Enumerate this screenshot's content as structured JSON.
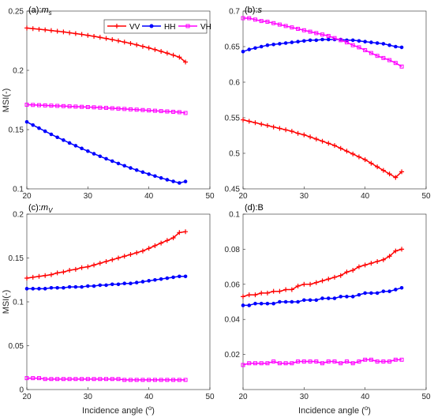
{
  "figure": {
    "ylabel": "MSI(-)",
    "xlabel_text": "Incidence angle (",
    "xlabel_sup": "o",
    "xlabel_close": ")"
  },
  "colors": {
    "VV": "#ff0000",
    "HH": "#0000ff",
    "VH": "#ff00ff"
  },
  "chart_data": [
    {
      "type": "line",
      "title_prefix": "(a):",
      "title_main": "m",
      "title_sub": "s",
      "xlim": [
        20,
        50
      ],
      "ylim": [
        0.1,
        0.25
      ],
      "xticks": [
        20,
        30,
        40,
        50
      ],
      "yticks": [
        0.1,
        0.15,
        0.2,
        0.25
      ],
      "ytick_labels": [
        "0.1",
        "0.15",
        "0.2",
        "0.25"
      ],
      "legend": {
        "location": "top-right",
        "entries": [
          "VV",
          "HH",
          "VH"
        ]
      },
      "x": [
        20,
        21,
        22,
        23,
        24,
        25,
        26,
        27,
        28,
        29,
        30,
        31,
        32,
        33,
        34,
        35,
        36,
        37,
        38,
        39,
        40,
        41,
        42,
        43,
        44,
        45,
        46
      ],
      "series": [
        {
          "name": "VV",
          "marker": "plus",
          "values": [
            0.2357,
            0.2352,
            0.2347,
            0.2342,
            0.2336,
            0.233,
            0.2324,
            0.2317,
            0.231,
            0.2303,
            0.2295,
            0.2287,
            0.2278,
            0.2269,
            0.2259,
            0.2249,
            0.2238,
            0.2227,
            0.2215,
            0.2202,
            0.2189,
            0.2175,
            0.216,
            0.2145,
            0.2128,
            0.2111,
            0.207
          ]
        },
        {
          "name": "HH",
          "marker": "circle",
          "values": [
            0.1565,
            0.1538,
            0.1512,
            0.1486,
            0.146,
            0.1435,
            0.1411,
            0.1387,
            0.1364,
            0.1341,
            0.1318,
            0.1296,
            0.1275,
            0.1254,
            0.1234,
            0.1214,
            0.1195,
            0.1176,
            0.1158,
            0.1141,
            0.1124,
            0.1108,
            0.1092,
            0.1077,
            0.1063,
            0.105,
            0.1062
          ]
        },
        {
          "name": "VH",
          "marker": "square",
          "values": [
            0.171,
            0.1708,
            0.1706,
            0.1704,
            0.1702,
            0.17,
            0.1698,
            0.1696,
            0.1694,
            0.1692,
            0.169,
            0.1688,
            0.1685,
            0.1683,
            0.168,
            0.1677,
            0.1674,
            0.1671,
            0.1668,
            0.1665,
            0.1662,
            0.1659,
            0.1656,
            0.1653,
            0.165,
            0.1647,
            0.164
          ]
        }
      ]
    },
    {
      "type": "line",
      "title_prefix": "(b):",
      "title_main": "s",
      "title_sub": "",
      "xlim": [
        20,
        50
      ],
      "ylim": [
        0.45,
        0.7
      ],
      "xticks": [
        20,
        30,
        40,
        50
      ],
      "yticks": [
        0.45,
        0.5,
        0.55,
        0.6,
        0.65,
        0.7
      ],
      "ytick_labels": [
        "0.45",
        "0.5",
        "0.55",
        "0.6",
        "0.65",
        "0.7"
      ],
      "x": [
        20,
        21,
        22,
        23,
        24,
        25,
        26,
        27,
        28,
        29,
        30,
        31,
        32,
        33,
        34,
        35,
        36,
        37,
        38,
        39,
        40,
        41,
        42,
        43,
        44,
        45,
        46
      ],
      "series": [
        {
          "name": "VV",
          "marker": "plus",
          "values": [
            0.547,
            0.545,
            0.543,
            0.541,
            0.539,
            0.537,
            0.535,
            0.533,
            0.531,
            0.528,
            0.526,
            0.523,
            0.52,
            0.517,
            0.514,
            0.511,
            0.507,
            0.503,
            0.499,
            0.495,
            0.491,
            0.486,
            0.481,
            0.476,
            0.471,
            0.466,
            0.474
          ]
        },
        {
          "name": "HH",
          "marker": "circle",
          "values": [
            0.643,
            0.646,
            0.648,
            0.65,
            0.652,
            0.653,
            0.654,
            0.655,
            0.656,
            0.657,
            0.658,
            0.659,
            0.659,
            0.66,
            0.66,
            0.66,
            0.66,
            0.659,
            0.659,
            0.658,
            0.657,
            0.656,
            0.655,
            0.654,
            0.652,
            0.65,
            0.649
          ]
        },
        {
          "name": "VH",
          "marker": "square",
          "values": [
            0.69,
            0.69,
            0.688,
            0.686,
            0.685,
            0.683,
            0.681,
            0.679,
            0.677,
            0.675,
            0.673,
            0.671,
            0.669,
            0.667,
            0.665,
            0.662,
            0.659,
            0.656,
            0.652,
            0.649,
            0.645,
            0.641,
            0.637,
            0.634,
            0.631,
            0.627,
            0.622
          ]
        }
      ]
    },
    {
      "type": "line",
      "title_prefix": "(c):",
      "title_main": "m",
      "title_sub": "V",
      "xlim": [
        20,
        50
      ],
      "ylim": [
        0,
        0.2
      ],
      "xticks": [
        20,
        30,
        40,
        50
      ],
      "yticks": [
        0,
        0.05,
        0.1,
        0.15,
        0.2
      ],
      "ytick_labels": [
        "0",
        "0.05",
        "0.1",
        "0.15",
        "0.2"
      ],
      "x": [
        20,
        21,
        22,
        23,
        24,
        25,
        26,
        27,
        28,
        29,
        30,
        31,
        32,
        33,
        34,
        35,
        36,
        37,
        38,
        39,
        40,
        41,
        42,
        43,
        44,
        45,
        46
      ],
      "series": [
        {
          "name": "VV",
          "marker": "plus",
          "values": [
            0.127,
            0.128,
            0.129,
            0.13,
            0.131,
            0.133,
            0.134,
            0.136,
            0.137,
            0.139,
            0.14,
            0.142,
            0.144,
            0.146,
            0.148,
            0.15,
            0.152,
            0.154,
            0.156,
            0.158,
            0.161,
            0.164,
            0.167,
            0.17,
            0.173,
            0.179,
            0.18
          ]
        },
        {
          "name": "HH",
          "marker": "circle",
          "values": [
            0.115,
            0.115,
            0.115,
            0.115,
            0.116,
            0.116,
            0.116,
            0.117,
            0.117,
            0.117,
            0.118,
            0.118,
            0.119,
            0.119,
            0.12,
            0.12,
            0.121,
            0.121,
            0.122,
            0.123,
            0.124,
            0.125,
            0.126,
            0.127,
            0.128,
            0.129,
            0.129
          ]
        },
        {
          "name": "VH",
          "marker": "square",
          "values": [
            0.013,
            0.013,
            0.013,
            0.012,
            0.012,
            0.012,
            0.012,
            0.012,
            0.012,
            0.012,
            0.012,
            0.012,
            0.012,
            0.012,
            0.012,
            0.012,
            0.011,
            0.011,
            0.011,
            0.011,
            0.011,
            0.011,
            0.011,
            0.011,
            0.011,
            0.011,
            0.011
          ]
        }
      ]
    },
    {
      "type": "line",
      "title_prefix": "(d):",
      "title_main": "B",
      "title_sub": "",
      "xlim": [
        20,
        50
      ],
      "ylim": [
        0,
        0.1
      ],
      "xticks": [
        20,
        30,
        40,
        50
      ],
      "yticks": [
        0.02,
        0.04,
        0.06,
        0.08,
        0.1
      ],
      "ytick_labels": [
        "0.02",
        "0.04",
        "0.06",
        "0.08",
        "0.1"
      ],
      "x": [
        20,
        21,
        22,
        23,
        24,
        25,
        26,
        27,
        28,
        29,
        30,
        31,
        32,
        33,
        34,
        35,
        36,
        37,
        38,
        39,
        40,
        41,
        42,
        43,
        44,
        45,
        46
      ],
      "series": [
        {
          "name": "VV",
          "marker": "plus",
          "values": [
            0.053,
            0.054,
            0.054,
            0.055,
            0.055,
            0.056,
            0.056,
            0.057,
            0.057,
            0.059,
            0.06,
            0.06,
            0.061,
            0.062,
            0.063,
            0.064,
            0.065,
            0.067,
            0.068,
            0.07,
            0.071,
            0.072,
            0.073,
            0.074,
            0.076,
            0.079,
            0.08
          ]
        },
        {
          "name": "HH",
          "marker": "circle",
          "values": [
            0.048,
            0.048,
            0.049,
            0.049,
            0.049,
            0.049,
            0.05,
            0.05,
            0.05,
            0.05,
            0.051,
            0.051,
            0.051,
            0.052,
            0.052,
            0.052,
            0.053,
            0.053,
            0.053,
            0.054,
            0.055,
            0.055,
            0.055,
            0.056,
            0.056,
            0.057,
            0.058
          ]
        },
        {
          "name": "VH",
          "marker": "square",
          "values": [
            0.014,
            0.015,
            0.015,
            0.015,
            0.015,
            0.016,
            0.015,
            0.015,
            0.015,
            0.016,
            0.016,
            0.016,
            0.016,
            0.015,
            0.016,
            0.016,
            0.015,
            0.016,
            0.015,
            0.016,
            0.017,
            0.017,
            0.016,
            0.016,
            0.016,
            0.017,
            0.017
          ]
        }
      ]
    }
  ]
}
